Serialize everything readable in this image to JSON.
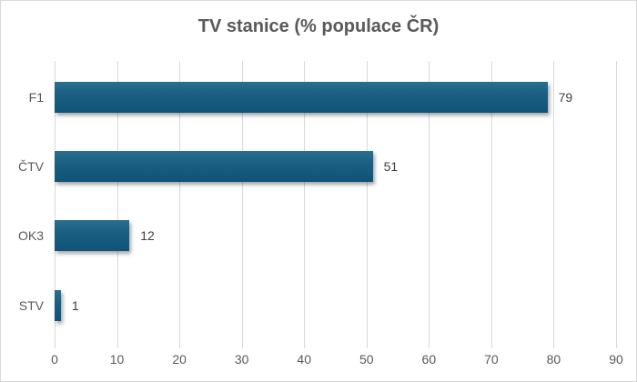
{
  "chart_data": {
    "type": "bar",
    "orientation": "horizontal",
    "title": "TV stanice (% populace ČR)",
    "categories": [
      "F1",
      "ČTV",
      "OK3",
      "STV"
    ],
    "values": [
      79,
      51,
      12,
      1
    ],
    "xlabel": "",
    "ylabel": "",
    "xlim": [
      0,
      90
    ],
    "x_ticks": [
      "0",
      "10",
      "20",
      "30",
      "40",
      "50",
      "60",
      "70",
      "80",
      "90"
    ],
    "grid": true,
    "legend": null,
    "data_labels": [
      "79",
      "51",
      "12",
      "1"
    ],
    "bar_color": "#1b5f82"
  }
}
